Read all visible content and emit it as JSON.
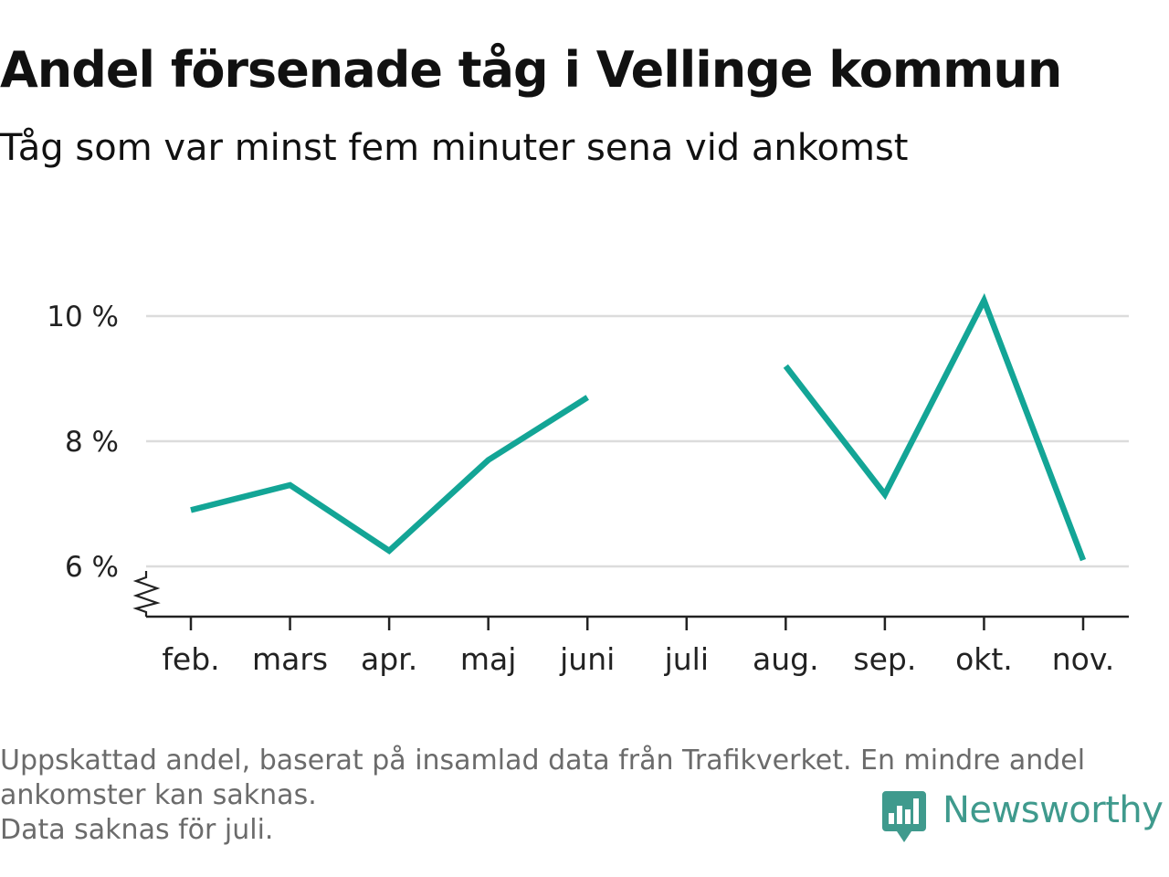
{
  "title": "Andel försenade tåg i Vellinge kommun",
  "subtitle": "Tåg som var minst fem minuter sena vid ankomst",
  "footnote_lines": [
    "Uppskattad andel, baserat på insamlad data från Trafikverket. En mindre andel",
    "ankomster kan saknas.",
    "Data saknas för juli."
  ],
  "brand": {
    "name": "Newsworthy",
    "icon": "newsworthy-logo-icon",
    "color": "#3f9a8d"
  },
  "chart_data": {
    "type": "line",
    "categories": [
      "feb.",
      "mars",
      "apr.",
      "maj",
      "juni",
      "juli",
      "aug.",
      "sep.",
      "okt.",
      "nov."
    ],
    "series": [
      {
        "values": [
          6.9,
          7.3,
          6.25,
          7.7,
          8.7,
          null,
          9.2,
          7.15,
          10.25,
          6.1
        ],
        "color": "#13a596"
      }
    ],
    "y_ticks": [
      6,
      8,
      10
    ],
    "y_tick_labels": [
      "6 %",
      "8 %",
      "10 %"
    ],
    "ylim": [
      5.2,
      10.6
    ],
    "y_axis_break": true,
    "grid": true,
    "xlabel": "",
    "ylabel": ""
  }
}
